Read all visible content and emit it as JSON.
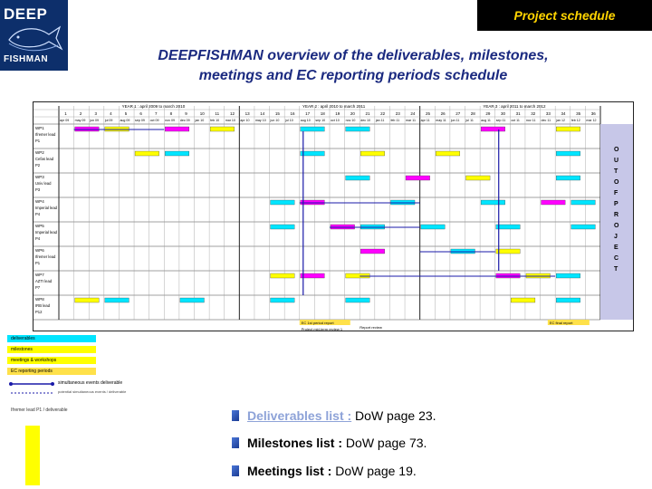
{
  "logo": {
    "line1": "DEEP",
    "line2": "FISHMAN"
  },
  "header": {
    "label": "Project schedule"
  },
  "title": {
    "line1": "DEEPFISHMAN overview of the deliverables, milestones,",
    "line2": "meetings and EC reporting periods schedule"
  },
  "gantt": {
    "years": [
      "YEAR 1 : april 2009 to march 2010",
      "YEAR 2 : april 2010 to march 2011",
      "YEAR 3 : april 2011 to march 2012"
    ],
    "month_numbers": [
      "1",
      "2",
      "3",
      "4",
      "5",
      "6",
      "7",
      "8",
      "9",
      "10",
      "11",
      "12",
      "13",
      "14",
      "15",
      "16",
      "17",
      "18",
      "19",
      "20",
      "21",
      "22",
      "23",
      "24",
      "25",
      "26",
      "27",
      "28",
      "29",
      "30",
      "31",
      "32",
      "33",
      "34",
      "35",
      "36"
    ],
    "month_names": [
      "apr 09",
      "may 09",
      "jun 09",
      "jul 09",
      "aug 09",
      "sep 09",
      "oct 09",
      "nov 09",
      "dec 09",
      "jan 10",
      "feb 10",
      "mar 10",
      "apr 10",
      "may 10",
      "jun 10",
      "jul 10",
      "aug 10",
      "sep 10",
      "oct 10",
      "nov 10",
      "dec 10",
      "jan 11",
      "feb 11",
      "mar 11",
      "apr 11",
      "may 11",
      "jun 11",
      "jul 11",
      "aug 11",
      "sep 11",
      "oct 11",
      "nov 11",
      "dec 11",
      "jan 12",
      "feb 12",
      "mar 12"
    ],
    "wps": [
      {
        "line1": "WP1",
        "line2": "Ifremer lead",
        "line3": "P1"
      },
      {
        "line1": "WP2",
        "line2": "Cefas lead",
        "line3": "P2"
      },
      {
        "line1": "WP3",
        "line2": "Univ lead",
        "line3": "P3"
      },
      {
        "line1": "WP4",
        "line2": "Imperial lead",
        "line3": "P4"
      },
      {
        "line1": "WP5",
        "line2": "Imperial lead",
        "line3": "P4"
      },
      {
        "line1": "WP6",
        "line2": "Ifremer lead",
        "line3": "P1"
      },
      {
        "line1": "WP7",
        "line2": "AZTI lead",
        "line3": "P7"
      },
      {
        "line1": "WP8",
        "line2": "IRB lead",
        "line3": "P12"
      }
    ],
    "out_of_project": [
      "O",
      "U",
      "T",
      "O",
      "F",
      "P",
      "R",
      "O",
      "J",
      "E",
      "C",
      "T"
    ],
    "annotations": {
      "ec_report": "EC 1st period report",
      "report_review": "Report review",
      "midterm_review": "Project mid-term review 1",
      "ec_final_report": "EC final report",
      "end_year_four": "End Year 4 of the project",
      "report_deadline": "Report deadline"
    }
  },
  "legend": {
    "deliverables": "deliverables",
    "milestones": "milestones",
    "meetings": "meetings & workshops",
    "ec_periods": "EC reporting periods",
    "simultaneous": "simultaneous events deliverable",
    "potential": "potential simultaneous events / deliverable",
    "note": "Ifremer lead P1 / deliverable"
  },
  "lists": [
    {
      "label": "Deliverables list :",
      "rest": " DoW page 23."
    },
    {
      "label": "Milestones list :",
      "rest": " DoW page 73."
    },
    {
      "label": "Meetings list :",
      "rest": " DoW page 19."
    }
  ]
}
